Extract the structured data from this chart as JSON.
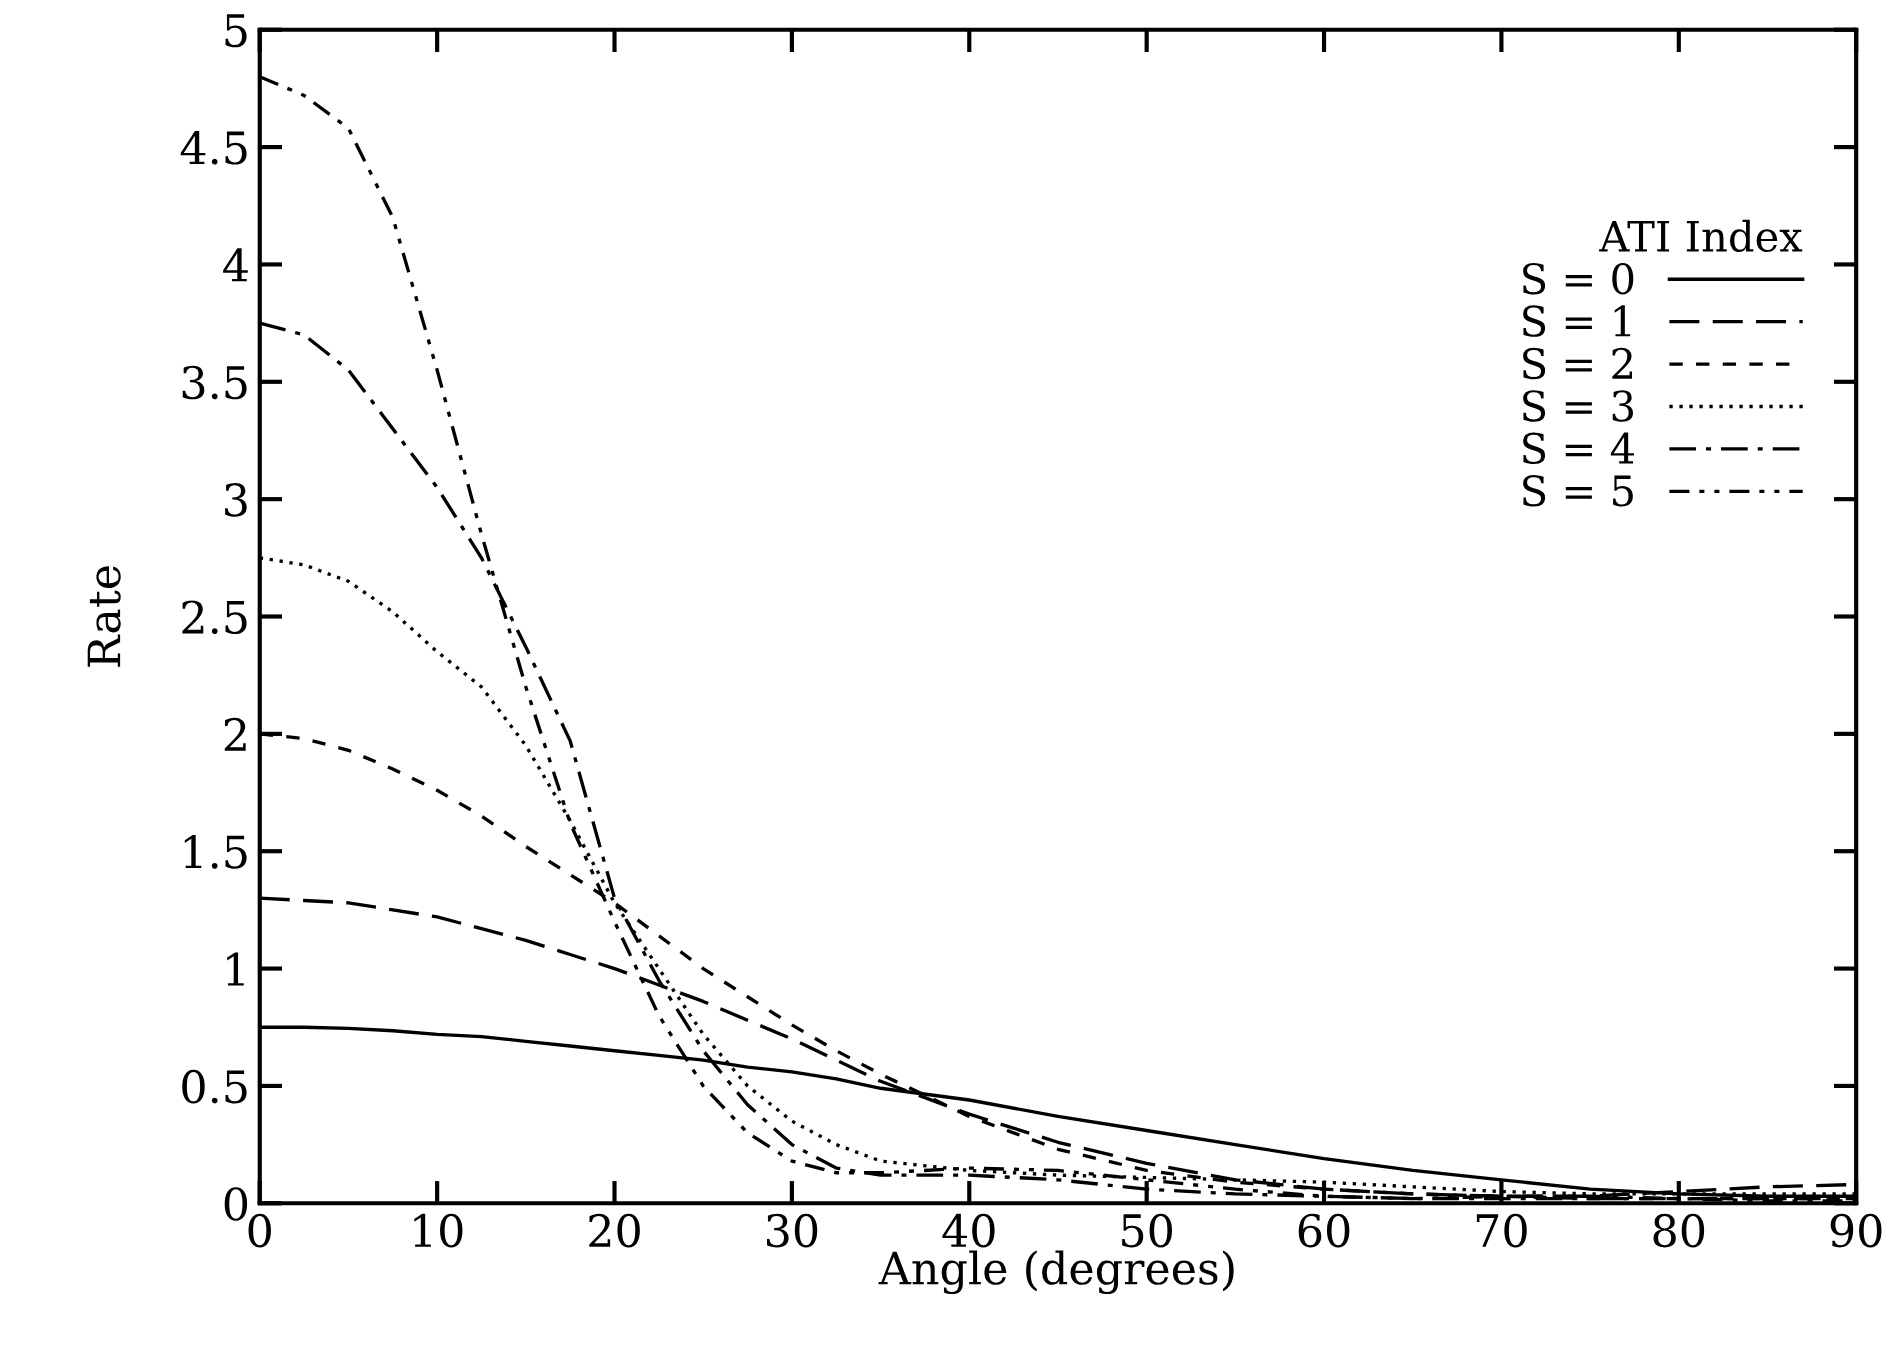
{
  "chart_data": {
    "type": "line",
    "xlabel": "Angle (degrees)",
    "ylabel": "Rate",
    "legend_title": "ATI Index",
    "legend": "top right",
    "grid": false,
    "x": [
      0,
      2.5,
      5,
      7.5,
      10,
      12.5,
      15,
      17.5,
      20,
      22.5,
      25,
      27.5,
      30,
      32.5,
      35,
      40,
      45,
      50,
      55,
      60,
      65,
      70,
      75,
      80,
      85,
      90
    ],
    "xlim": [
      0,
      90
    ],
    "xticks": [
      0,
      10,
      20,
      30,
      40,
      50,
      60,
      70,
      80,
      90
    ],
    "ylim": [
      0,
      5
    ],
    "yticks": [
      0,
      0.5,
      1,
      1.5,
      2,
      2.5,
      3,
      3.5,
      4,
      4.5,
      5
    ],
    "series": [
      {
        "name": "S = 0",
        "color": "#000000",
        "line_style": "solid",
        "values": [
          0.75,
          0.75,
          0.745,
          0.735,
          0.72,
          0.71,
          0.69,
          0.67,
          0.65,
          0.63,
          0.61,
          0.58,
          0.56,
          0.53,
          0.49,
          0.44,
          0.37,
          0.31,
          0.25,
          0.19,
          0.14,
          0.1,
          0.06,
          0.04,
          0.03,
          0.03
        ]
      },
      {
        "name": "S = 1",
        "color": "#000000",
        "line_style": "long dashed",
        "values": [
          1.3,
          1.29,
          1.28,
          1.25,
          1.22,
          1.17,
          1.12,
          1.06,
          1.0,
          0.93,
          0.86,
          0.78,
          0.7,
          0.61,
          0.52,
          0.38,
          0.26,
          0.17,
          0.1,
          0.06,
          0.04,
          0.03,
          0.03,
          0.05,
          0.07,
          0.08
        ]
      },
      {
        "name": "S = 2",
        "color": "#000000",
        "line_style": "dashed",
        "values": [
          2.0,
          1.98,
          1.93,
          1.85,
          1.76,
          1.65,
          1.52,
          1.4,
          1.28,
          1.14,
          1.0,
          0.88,
          0.76,
          0.65,
          0.55,
          0.37,
          0.23,
          0.14,
          0.09,
          0.06,
          0.04,
          0.03,
          0.02,
          0.02,
          0.02,
          0.02
        ]
      },
      {
        "name": "S = 3",
        "color": "#000000",
        "line_style": "dotted",
        "values": [
          2.75,
          2.72,
          2.65,
          2.52,
          2.35,
          2.2,
          1.95,
          1.63,
          1.28,
          1.0,
          0.72,
          0.5,
          0.35,
          0.25,
          0.18,
          0.14,
          0.12,
          0.11,
          0.1,
          0.09,
          0.07,
          0.05,
          0.04,
          0.04,
          0.04,
          0.04
        ]
      },
      {
        "name": "S = 4",
        "color": "#000000",
        "line_style": "dashdot",
        "values": [
          3.75,
          3.7,
          3.55,
          3.3,
          3.05,
          2.75,
          2.37,
          1.97,
          1.3,
          0.95,
          0.65,
          0.42,
          0.25,
          0.15,
          0.12,
          0.12,
          0.1,
          0.06,
          0.04,
          0.03,
          0.02,
          0.02,
          0.02,
          0.02,
          0.02,
          0.02
        ]
      },
      {
        "name": "S = 5",
        "color": "#000000",
        "line_style": "dashdotdot",
        "values": [
          4.8,
          4.72,
          4.58,
          4.2,
          3.55,
          2.85,
          2.2,
          1.62,
          1.2,
          0.8,
          0.5,
          0.3,
          0.18,
          0.13,
          0.13,
          0.15,
          0.14,
          0.1,
          0.06,
          0.03,
          0.02,
          0.03,
          0.03,
          0.02,
          0.01,
          0.01
        ]
      }
    ]
  }
}
